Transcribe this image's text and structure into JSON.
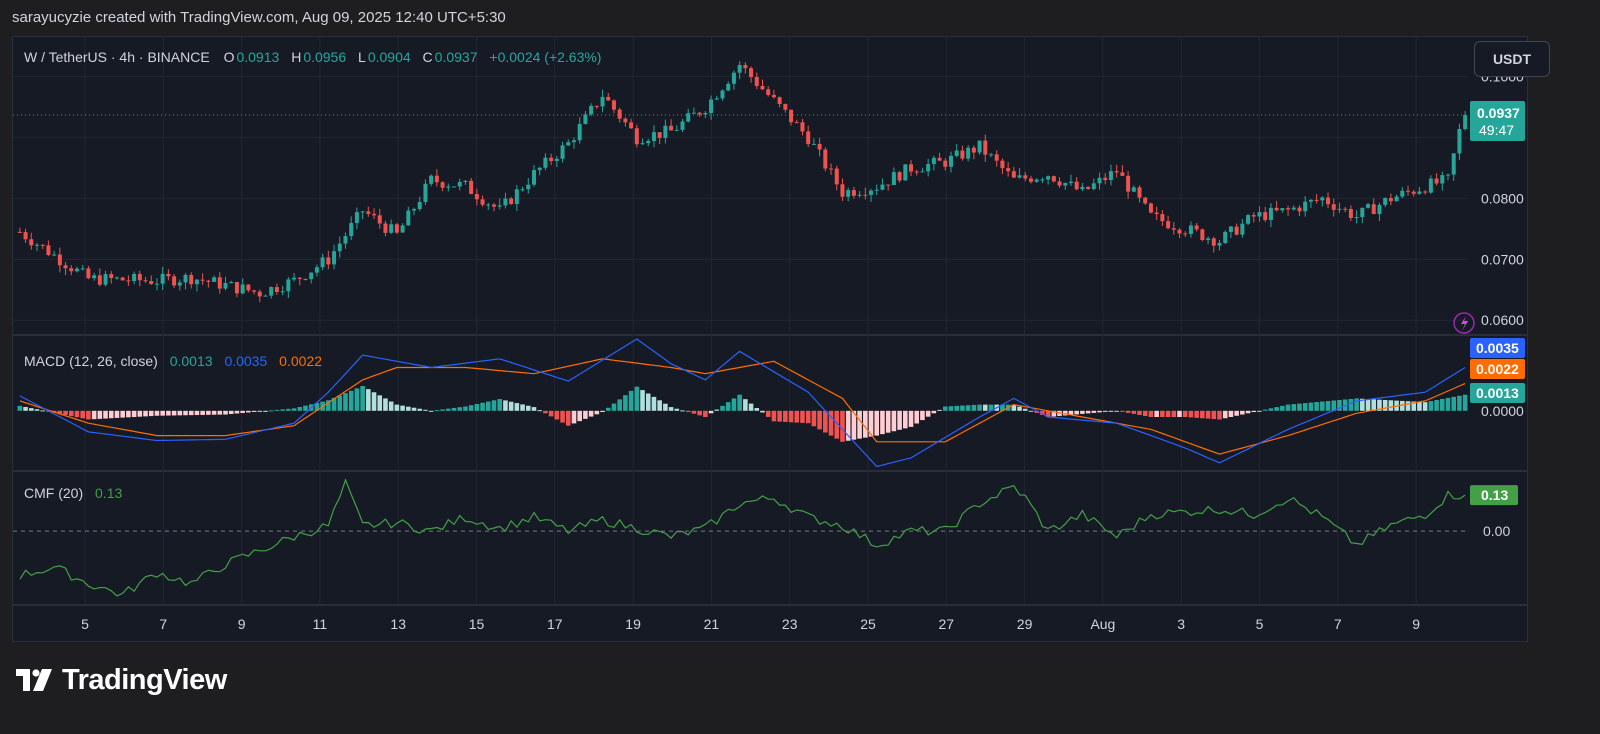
{
  "header": {
    "attribution": "sarayucyzie created with TradingView.com, Aug 09, 2025 12:40 UTC+5:30"
  },
  "symbol": {
    "name": "W / TetherUS · 4h · BINANCE",
    "o_label": "O",
    "o": "0.0913",
    "h_label": "H",
    "h": "0.0956",
    "l_label": "L",
    "l": "0.0904",
    "c_label": "C",
    "c": "0.0937",
    "change": "+0.0024 (+2.63%)"
  },
  "currency_button": "USDT",
  "price_badge": {
    "price": "0.0937",
    "countdown": "49:47"
  },
  "macd_legend": {
    "title": "MACD (12, 26, close)",
    "hist": "0.0013",
    "macd": "0.0035",
    "signal": "0.0022"
  },
  "cmf_legend": {
    "title": "CMF (20)",
    "value": "0.13"
  },
  "brand": {
    "name": "TradingView"
  },
  "colors": {
    "up": "#26a69a",
    "down": "#ef5350",
    "macd": "#2962ff",
    "signal": "#ff6d00",
    "cmf": "#43a047",
    "hist_up_light": "#b2dfdb",
    "hist_down_light": "#ffcdd2"
  },
  "chart_data": [
    {
      "type": "candlestick",
      "title": "W / TetherUS · 4h · BINANCE",
      "x_ticks": [
        "5",
        "7",
        "9",
        "11",
        "13",
        "15",
        "17",
        "19",
        "21",
        "23",
        "25",
        "27",
        "29",
        "Aug",
        "3",
        "5",
        "7",
        "9"
      ],
      "y_ticks": [
        "0.1000",
        "0.0800",
        "0.0700",
        "0.0600"
      ],
      "ylim": [
        0.0579,
        0.1065
      ],
      "last_price": 0.0937,
      "close_path": [
        {
          "t": 0,
          "p": 0.0745
        },
        {
          "t": 12,
          "p": 0.0668
        },
        {
          "t": 24,
          "p": 0.0665
        },
        {
          "t": 30,
          "p": 0.067
        },
        {
          "t": 42,
          "p": 0.0645
        },
        {
          "t": 48,
          "p": 0.0665
        },
        {
          "t": 54,
          "p": 0.07
        },
        {
          "t": 60,
          "p": 0.078
        },
        {
          "t": 66,
          "p": 0.074
        },
        {
          "t": 72,
          "p": 0.083
        },
        {
          "t": 78,
          "p": 0.082
        },
        {
          "t": 84,
          "p": 0.078
        },
        {
          "t": 90,
          "p": 0.084
        },
        {
          "t": 96,
          "p": 0.089
        },
        {
          "t": 102,
          "p": 0.097
        },
        {
          "t": 108,
          "p": 0.09
        },
        {
          "t": 114,
          "p": 0.091
        },
        {
          "t": 120,
          "p": 0.095
        },
        {
          "t": 126,
          "p": 0.102
        },
        {
          "t": 132,
          "p": 0.096
        },
        {
          "t": 138,
          "p": 0.09
        },
        {
          "t": 144,
          "p": 0.081
        },
        {
          "t": 150,
          "p": 0.082
        },
        {
          "t": 156,
          "p": 0.085
        },
        {
          "t": 162,
          "p": 0.086
        },
        {
          "t": 168,
          "p": 0.0885
        },
        {
          "t": 174,
          "p": 0.083
        },
        {
          "t": 180,
          "p": 0.084
        },
        {
          "t": 186,
          "p": 0.081
        },
        {
          "t": 192,
          "p": 0.0845
        },
        {
          "t": 198,
          "p": 0.077
        },
        {
          "t": 204,
          "p": 0.075
        },
        {
          "t": 210,
          "p": 0.073
        },
        {
          "t": 216,
          "p": 0.077
        },
        {
          "t": 222,
          "p": 0.078
        },
        {
          "t": 228,
          "p": 0.08
        },
        {
          "t": 234,
          "p": 0.077
        },
        {
          "t": 240,
          "p": 0.08
        },
        {
          "t": 246,
          "p": 0.082
        },
        {
          "t": 250,
          "p": 0.083
        },
        {
          "t": 252,
          "p": 0.091
        },
        {
          "t": 253,
          "p": 0.0937
        }
      ]
    },
    {
      "type": "line",
      "title": "MACD (12, 26, close)",
      "y_ticks": [
        "0.0000"
      ],
      "ylim": [
        -0.0047,
        0.0058
      ],
      "series": [
        {
          "name": "MACD",
          "path": [
            {
              "t": 0,
              "v": 0.0012
            },
            {
              "t": 12,
              "v": -0.0017
            },
            {
              "t": 24,
              "v": -0.0024
            },
            {
              "t": 36,
              "v": -0.0023
            },
            {
              "t": 48,
              "v": -0.001
            },
            {
              "t": 54,
              "v": 0.0015
            },
            {
              "t": 60,
              "v": 0.0045
            },
            {
              "t": 66,
              "v": 0.004
            },
            {
              "t": 72,
              "v": 0.0035
            },
            {
              "t": 84,
              "v": 0.0042
            },
            {
              "t": 96,
              "v": 0.0024
            },
            {
              "t": 108,
              "v": 0.0058
            },
            {
              "t": 114,
              "v": 0.0038
            },
            {
              "t": 120,
              "v": 0.0025
            },
            {
              "t": 126,
              "v": 0.0048
            },
            {
              "t": 138,
              "v": 0.0015
            },
            {
              "t": 150,
              "v": -0.0045
            },
            {
              "t": 156,
              "v": -0.0038
            },
            {
              "t": 168,
              "v": -0.0005
            },
            {
              "t": 174,
              "v": 0.001
            },
            {
              "t": 180,
              "v": -0.0005
            },
            {
              "t": 192,
              "v": -0.001
            },
            {
              "t": 204,
              "v": -0.003
            },
            {
              "t": 210,
              "v": -0.0042
            },
            {
              "t": 222,
              "v": -0.0015
            },
            {
              "t": 234,
              "v": 0.0008
            },
            {
              "t": 246,
              "v": 0.0015
            },
            {
              "t": 253,
              "v": 0.0035
            }
          ]
        },
        {
          "name": "Signal",
          "path": [
            {
              "t": 0,
              "v": 0.0008
            },
            {
              "t": 12,
              "v": -0.001
            },
            {
              "t": 24,
              "v": -0.002
            },
            {
              "t": 36,
              "v": -0.002
            },
            {
              "t": 48,
              "v": -0.0012
            },
            {
              "t": 60,
              "v": 0.0025
            },
            {
              "t": 66,
              "v": 0.0035
            },
            {
              "t": 78,
              "v": 0.0035
            },
            {
              "t": 90,
              "v": 0.003
            },
            {
              "t": 102,
              "v": 0.0042
            },
            {
              "t": 114,
              "v": 0.0035
            },
            {
              "t": 120,
              "v": 0.003
            },
            {
              "t": 132,
              "v": 0.004
            },
            {
              "t": 144,
              "v": 0.001
            },
            {
              "t": 150,
              "v": -0.0025
            },
            {
              "t": 162,
              "v": -0.0025
            },
            {
              "t": 174,
              "v": 0.0005
            },
            {
              "t": 186,
              "v": -0.0005
            },
            {
              "t": 198,
              "v": -0.0015
            },
            {
              "t": 210,
              "v": -0.0035
            },
            {
              "t": 222,
              "v": -0.002
            },
            {
              "t": 234,
              "v": -0.0002
            },
            {
              "t": 246,
              "v": 0.0008
            },
            {
              "t": 253,
              "v": 0.0022
            }
          ]
        },
        {
          "name": "Histogram",
          "last": 0.0013
        }
      ]
    },
    {
      "type": "line",
      "title": "CMF (20)",
      "y_ticks": [
        "0.00"
      ],
      "ylim": [
        -0.26,
        0.21
      ],
      "series": [
        {
          "name": "CMF",
          "path": [
            {
              "t": 0,
              "v": -0.16
            },
            {
              "t": 6,
              "v": -0.13
            },
            {
              "t": 12,
              "v": -0.19
            },
            {
              "t": 18,
              "v": -0.23
            },
            {
              "t": 24,
              "v": -0.15
            },
            {
              "t": 30,
              "v": -0.19
            },
            {
              "t": 36,
              "v": -0.12
            },
            {
              "t": 42,
              "v": -0.07
            },
            {
              "t": 48,
              "v": -0.02
            },
            {
              "t": 54,
              "v": 0.02
            },
            {
              "t": 57,
              "v": 0.17
            },
            {
              "t": 60,
              "v": 0.02
            },
            {
              "t": 66,
              "v": 0.03
            },
            {
              "t": 72,
              "v": 0.0
            },
            {
              "t": 78,
              "v": 0.05
            },
            {
              "t": 84,
              "v": 0.01
            },
            {
              "t": 90,
              "v": 0.05
            },
            {
              "t": 96,
              "v": 0.0
            },
            {
              "t": 102,
              "v": 0.04
            },
            {
              "t": 108,
              "v": 0.01
            },
            {
              "t": 114,
              "v": -0.02
            },
            {
              "t": 120,
              "v": 0.01
            },
            {
              "t": 126,
              "v": 0.1
            },
            {
              "t": 132,
              "v": 0.12
            },
            {
              "t": 138,
              "v": 0.05
            },
            {
              "t": 144,
              "v": 0.02
            },
            {
              "t": 150,
              "v": -0.05
            },
            {
              "t": 156,
              "v": 0.0
            },
            {
              "t": 162,
              "v": 0.0
            },
            {
              "t": 168,
              "v": 0.1
            },
            {
              "t": 174,
              "v": 0.16
            },
            {
              "t": 176,
              "v": 0.12
            },
            {
              "t": 180,
              "v": 0.0
            },
            {
              "t": 186,
              "v": 0.06
            },
            {
              "t": 192,
              "v": -0.02
            },
            {
              "t": 198,
              "v": 0.06
            },
            {
              "t": 204,
              "v": 0.07
            },
            {
              "t": 210,
              "v": 0.08
            },
            {
              "t": 216,
              "v": 0.06
            },
            {
              "t": 222,
              "v": 0.12
            },
            {
              "t": 228,
              "v": 0.05
            },
            {
              "t": 234,
              "v": -0.05
            },
            {
              "t": 240,
              "v": 0.02
            },
            {
              "t": 246,
              "v": 0.06
            },
            {
              "t": 250,
              "v": 0.13
            },
            {
              "t": 253,
              "v": 0.13
            }
          ]
        }
      ]
    }
  ]
}
